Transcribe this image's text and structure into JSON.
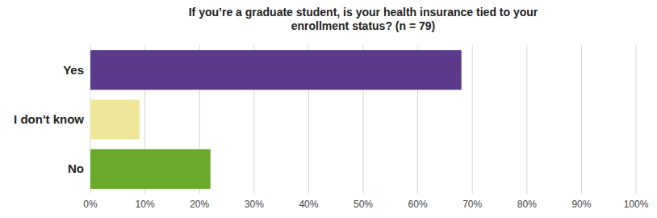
{
  "chart_data": {
    "type": "bar",
    "orientation": "horizontal",
    "title": "If you’re a graduate student, is your health insurance tied to your\nenrollment status? (n = 79)",
    "categories": [
      "Yes",
      "I don't know",
      "No"
    ],
    "values": [
      68,
      9,
      22
    ],
    "colors": [
      "#5b3a8c",
      "#f0e699",
      "#6aaa2a"
    ],
    "xlim": [
      0,
      100
    ],
    "xticks": [
      {
        "value": 0,
        "label": "0%"
      },
      {
        "value": 10,
        "label": "10%"
      },
      {
        "value": 20,
        "label": "20%"
      },
      {
        "value": 30,
        "label": "30%"
      },
      {
        "value": 40,
        "label": "40%"
      },
      {
        "value": 50,
        "label": "50%"
      },
      {
        "value": 60,
        "label": "60%"
      },
      {
        "value": 70,
        "label": "70%"
      },
      {
        "value": 80,
        "label": "80%"
      },
      {
        "value": 90,
        "label": "90%"
      },
      {
        "value": 100,
        "label": "100%"
      }
    ],
    "grid": true
  }
}
